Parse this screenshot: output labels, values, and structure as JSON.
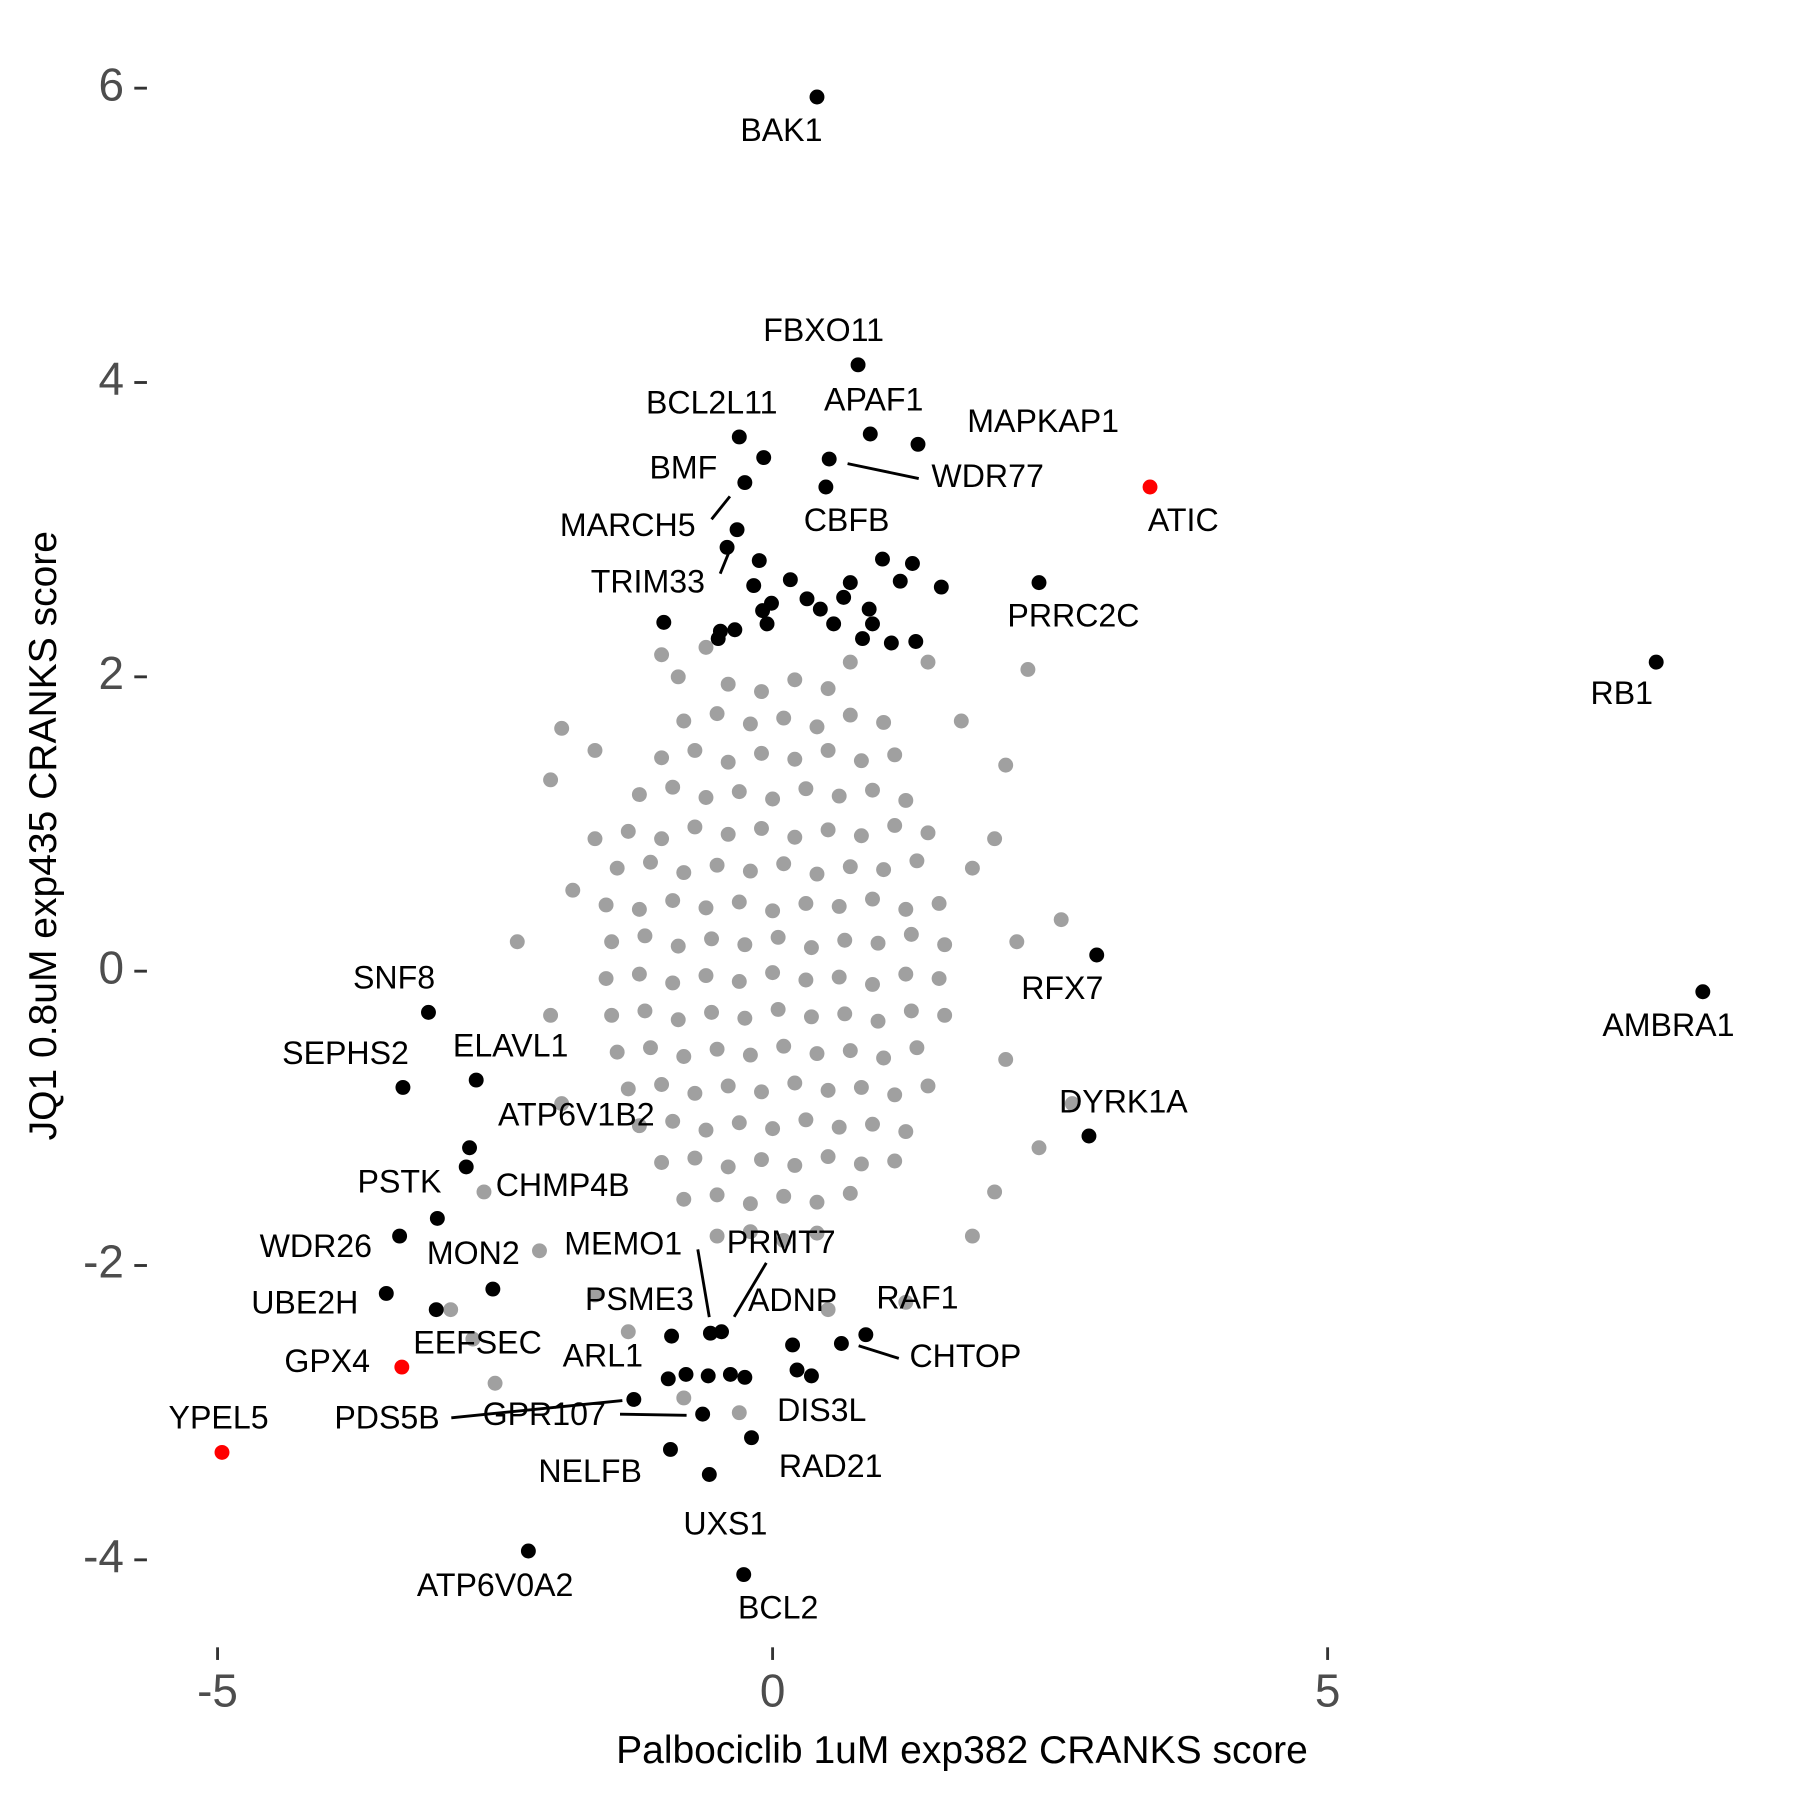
{
  "chart_data": {
    "type": "scatter",
    "x_label": "Palbociclib 1uM exp382 CRANKS score",
    "y_label": "JQ1 0.8uM exp435 CRANKS score",
    "xlim": [
      -5.6,
      9.0
    ],
    "ylim": [
      -4.55,
      6.25
    ],
    "xticks": [
      -5,
      0,
      5
    ],
    "yticks": [
      -4,
      -2,
      0,
      2,
      4,
      6
    ],
    "grid": false,
    "series": [
      {
        "color": "#a0a0a0",
        "x": [
          -0.4,
          -0.1,
          0.2,
          0.5,
          -0.8,
          -0.5,
          -0.2,
          0.1,
          0.4,
          0.7,
          1.0,
          -1.0,
          -0.7,
          -0.4,
          -0.1,
          0.2,
          0.5,
          0.8,
          1.1,
          -1.2,
          -0.9,
          -0.6,
          -0.3,
          0.0,
          0.3,
          0.6,
          0.9,
          1.2,
          -1.3,
          -1.0,
          -0.7,
          -0.4,
          -0.1,
          0.2,
          0.5,
          0.8,
          1.1,
          1.4,
          -1.4,
          -1.1,
          -0.8,
          -0.5,
          -0.2,
          0.1,
          0.4,
          0.7,
          1.0,
          1.3,
          -1.5,
          -1.2,
          -0.9,
          -0.6,
          -0.3,
          0.0,
          0.3,
          0.6,
          0.9,
          1.2,
          1.5,
          -1.45,
          -1.15,
          -0.85,
          -0.55,
          -0.25,
          0.05,
          0.35,
          0.65,
          0.95,
          1.25,
          1.55,
          -1.5,
          -1.2,
          -0.9,
          -0.6,
          -0.3,
          0.0,
          0.3,
          0.6,
          0.9,
          1.2,
          1.5,
          -1.45,
          -1.15,
          -0.85,
          -0.55,
          -0.25,
          0.05,
          0.35,
          0.65,
          0.95,
          1.25,
          1.55,
          -1.4,
          -1.1,
          -0.8,
          -0.5,
          -0.2,
          0.1,
          0.4,
          0.7,
          1.0,
          1.3,
          -1.3,
          -1.0,
          -0.7,
          -0.4,
          -0.1,
          0.2,
          0.5,
          0.8,
          1.1,
          1.4,
          -1.2,
          -0.9,
          -0.6,
          -0.3,
          0.0,
          0.3,
          0.6,
          0.9,
          1.2,
          -1.0,
          -0.7,
          -0.4,
          -0.1,
          0.2,
          0.5,
          0.8,
          1.1,
          -0.8,
          -0.5,
          -0.2,
          0.1,
          0.4,
          0.7,
          -0.5,
          -0.2,
          0.1,
          0.4,
          -1.9,
          -1.6,
          -2.0,
          -1.8,
          -2.3,
          -2.0,
          -1.9,
          -2.6,
          -2.1,
          -1.6,
          -2.9,
          -2.7,
          -2.5,
          -1.3,
          -0.8,
          -0.3,
          0.5,
          1.2,
          1.8,
          2.0,
          2.4,
          2.1,
          2.7,
          2.2,
          2.6,
          2.0,
          2.1,
          1.7,
          1.4,
          2.3,
          0.7,
          -0.6,
          -1.0,
          -0.85,
          1.8,
          -1.6
        ],
        "y": [
          1.95,
          1.9,
          1.98,
          1.92,
          1.7,
          1.75,
          1.68,
          1.72,
          1.66,
          1.74,
          1.69,
          1.45,
          1.5,
          1.42,
          1.48,
          1.44,
          1.5,
          1.43,
          1.47,
          1.2,
          1.25,
          1.18,
          1.22,
          1.17,
          1.24,
          1.19,
          1.23,
          1.16,
          0.95,
          0.9,
          0.98,
          0.93,
          0.97,
          0.91,
          0.96,
          0.92,
          0.99,
          0.94,
          0.7,
          0.74,
          0.67,
          0.72,
          0.68,
          0.73,
          0.66,
          0.71,
          0.69,
          0.75,
          0.45,
          0.42,
          0.48,
          0.43,
          0.47,
          0.41,
          0.46,
          0.44,
          0.49,
          0.42,
          0.46,
          0.2,
          0.24,
          0.17,
          0.22,
          0.18,
          0.23,
          0.16,
          0.21,
          0.19,
          0.25,
          0.18,
          -0.05,
          -0.02,
          -0.08,
          -0.03,
          -0.07,
          -0.01,
          -0.06,
          -0.04,
          -0.09,
          -0.02,
          -0.05,
          -0.3,
          -0.27,
          -0.33,
          -0.28,
          -0.32,
          -0.26,
          -0.31,
          -0.29,
          -0.34,
          -0.27,
          -0.3,
          -0.55,
          -0.52,
          -0.58,
          -0.53,
          -0.57,
          -0.51,
          -0.56,
          -0.54,
          -0.59,
          -0.52,
          -0.8,
          -0.77,
          -0.83,
          -0.78,
          -0.82,
          -0.76,
          -0.81,
          -0.79,
          -0.84,
          -0.78,
          -1.05,
          -1.02,
          -1.08,
          -1.03,
          -1.07,
          -1.01,
          -1.06,
          -1.04,
          -1.09,
          -1.3,
          -1.27,
          -1.33,
          -1.28,
          -1.32,
          -1.26,
          -1.31,
          -1.29,
          -1.55,
          -1.52,
          -1.58,
          -1.53,
          -1.57,
          -1.51,
          -1.8,
          -1.77,
          -1.83,
          -1.78,
          1.65,
          1.5,
          1.3,
          0.55,
          0.2,
          -0.3,
          -0.9,
          -1.5,
          -1.9,
          -2.2,
          -2.3,
          -2.5,
          -2.8,
          -2.45,
          -2.9,
          -3.0,
          -2.3,
          -2.25,
          -1.8,
          -1.5,
          -1.2,
          -0.6,
          -0.9,
          0.2,
          0.35,
          0.9,
          1.4,
          1.7,
          2.1,
          2.05,
          2.1,
          2.2,
          2.15,
          2.0,
          0.7,
          0.9
        ]
      },
      {
        "color": "#000000",
        "x": [
          0.4,
          0.77,
          0.88,
          1.31,
          -0.3,
          0.51,
          -0.08,
          -0.25,
          0.48,
          -0.41,
          2.4,
          7.96,
          2.92,
          8.38,
          -3.1,
          -3.33,
          -2.67,
          2.85,
          -2.73,
          -2.76,
          -3.02,
          -3.36,
          -2.52,
          -3.48,
          -3.03,
          -0.56,
          -0.46,
          -0.91,
          0.18,
          0.84,
          0.62,
          -0.94,
          0.35,
          -1.25,
          -0.63,
          -0.92,
          -0.19,
          -0.57,
          -2.2,
          -0.26
        ],
        "y": [
          5.94,
          4.12,
          3.65,
          3.58,
          3.63,
          3.48,
          3.49,
          3.32,
          3.29,
          2.88,
          2.64,
          2.1,
          0.11,
          -0.14,
          -0.28,
          -0.79,
          -0.74,
          -1.12,
          -1.2,
          -1.33,
          -1.68,
          -1.8,
          -2.16,
          -2.19,
          -2.3,
          -2.46,
          -2.45,
          -2.48,
          -2.54,
          -2.47,
          -2.53,
          -2.77,
          -2.75,
          -2.91,
          -3.01,
          -3.25,
          -3.17,
          -3.42,
          -3.94,
          -4.1
        ],
        "labels": [
          "BAK1",
          "FBXO11",
          "APAF1",
          "MAPKAP1",
          "BCL2L11",
          "WDR77",
          "BMF",
          "MARCH5",
          "CBFB",
          "TRIM33",
          "PRRC2C",
          "RB1",
          "RFX7",
          "AMBRA1",
          "SNF8",
          "SEPHS2",
          "ELAVL1",
          "DYRK1A",
          "ATP6V1B2",
          "CHMP4B",
          "PSTK",
          "WDR26",
          "MON2",
          "UBE2H",
          "EEFSEC",
          "MEMO1",
          "PRMT7",
          "PSME3",
          "ADNP",
          "RAF1",
          "CHTOP",
          "ARL1",
          "DIS3L",
          "PDS5B",
          "GPR107",
          "NELFB",
          "RAD21",
          "UXS1",
          "ATP6V0A2",
          "BCL2"
        ]
      },
      {
        "color": "#000000",
        "x": [
          -0.98,
          -0.32,
          -0.12,
          0.16,
          -0.17,
          -0.09,
          -0.01,
          0.31,
          0.43,
          0.64,
          0.7,
          0.99,
          1.15,
          1.26,
          1.52,
          0.87,
          0.9,
          0.55,
          0.81,
          1.07,
          1.29,
          -0.47,
          -0.34,
          -0.05,
          -0.49,
          -0.78,
          -0.58,
          -0.38,
          -0.25,
          0.22
        ],
        "y": [
          2.37,
          3.0,
          2.79,
          2.66,
          2.62,
          2.45,
          2.5,
          2.53,
          2.46,
          2.54,
          2.64,
          2.8,
          2.65,
          2.77,
          2.61,
          2.46,
          2.36,
          2.36,
          2.26,
          2.23,
          2.24,
          2.31,
          2.32,
          2.36,
          2.26,
          -2.74,
          -2.75,
          -2.74,
          -2.76,
          -2.71
        ]
      },
      {
        "color": "#ff0000",
        "x": [
          3.4,
          -3.34,
          -4.96
        ],
        "y": [
          3.29,
          -2.69,
          -3.27
        ],
        "labels": [
          "ATIC",
          "GPX4",
          "YPEL5"
        ]
      }
    ]
  }
}
